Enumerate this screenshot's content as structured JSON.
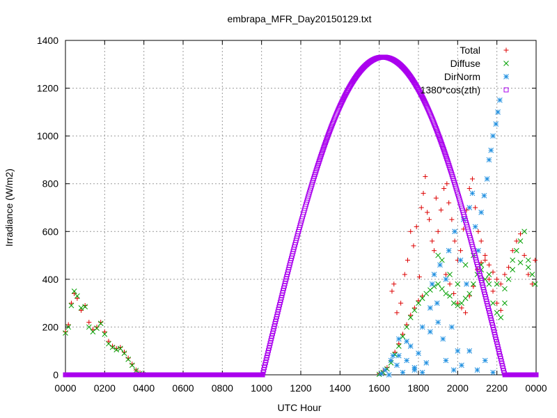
{
  "chart_data": {
    "type": "scatter",
    "title": "embrapa_MFR_Day20150129.txt",
    "xlabel": "UTC Hour",
    "ylabel": "Irradiance (W/m2)",
    "xlim": [
      0,
      2400
    ],
    "ylim": [
      0,
      1400
    ],
    "xticks": [
      "0000",
      "0200",
      "0400",
      "0600",
      "0800",
      "1000",
      "1200",
      "1400",
      "1600",
      "1800",
      "2000",
      "2200",
      "0000"
    ],
    "yticks": [
      "0",
      "200",
      "400",
      "600",
      "800",
      "1000",
      "1200",
      "1400"
    ],
    "grid": true,
    "legend_position": "top-right",
    "series": [
      {
        "name": "Total",
        "color": "#dd0000",
        "marker": "plus",
        "points": [
          [
            0,
            180
          ],
          [
            15,
            210
          ],
          [
            30,
            300
          ],
          [
            45,
            340
          ],
          [
            60,
            320
          ],
          [
            80,
            270
          ],
          [
            100,
            290
          ],
          [
            120,
            220
          ],
          [
            140,
            190
          ],
          [
            160,
            200
          ],
          [
            180,
            220
          ],
          [
            200,
            180
          ],
          [
            220,
            140
          ],
          [
            240,
            120
          ],
          [
            260,
            110
          ],
          [
            280,
            115
          ],
          [
            300,
            95
          ],
          [
            320,
            70
          ],
          [
            340,
            45
          ],
          [
            360,
            20
          ],
          [
            380,
            8
          ],
          [
            395,
            2
          ],
          [
            1600,
            5
          ],
          [
            1620,
            15
          ],
          [
            1640,
            30
          ],
          [
            1660,
            60
          ],
          [
            1680,
            95
          ],
          [
            1700,
            130
          ],
          [
            1720,
            170
          ],
          [
            1740,
            210
          ],
          [
            1760,
            250
          ],
          [
            1780,
            280
          ],
          [
            1800,
            310
          ],
          [
            1820,
            330
          ],
          [
            1665,
            350
          ],
          [
            1675,
            380
          ],
          [
            1690,
            260
          ],
          [
            1710,
            300
          ],
          [
            1730,
            420
          ],
          [
            1745,
            480
          ],
          [
            1760,
            600
          ],
          [
            1775,
            540
          ],
          [
            1790,
            620
          ],
          [
            1805,
            410
          ],
          [
            1815,
            700
          ],
          [
            1825,
            760
          ],
          [
            1835,
            830
          ],
          [
            1845,
            680
          ],
          [
            1855,
            650
          ],
          [
            1870,
            560
          ],
          [
            1880,
            520
          ],
          [
            1890,
            740
          ],
          [
            1900,
            600
          ],
          [
            1915,
            690
          ],
          [
            1930,
            780
          ],
          [
            1945,
            800
          ],
          [
            1955,
            720
          ],
          [
            1970,
            650
          ],
          [
            1985,
            560
          ],
          [
            2000,
            480
          ],
          [
            2015,
            520
          ],
          [
            2030,
            610
          ],
          [
            2045,
            690
          ],
          [
            2060,
            780
          ],
          [
            2075,
            820
          ],
          [
            2090,
            700
          ],
          [
            2105,
            600
          ],
          [
            2120,
            560
          ],
          [
            2140,
            480
          ],
          [
            2160,
            400
          ],
          [
            2180,
            350
          ],
          [
            2200,
            300
          ],
          [
            2220,
            270
          ],
          [
            1940,
            420
          ],
          [
            1960,
            380
          ],
          [
            1980,
            340
          ],
          [
            2000,
            300
          ],
          [
            2020,
            280
          ],
          [
            2040,
            260
          ],
          [
            2060,
            330
          ],
          [
            2080,
            370
          ],
          [
            2100,
            440
          ],
          [
            2120,
            470
          ],
          [
            2140,
            500
          ],
          [
            2160,
            460
          ],
          [
            2180,
            430
          ],
          [
            2200,
            400
          ],
          [
            2220,
            380
          ],
          [
            2240,
            420
          ],
          [
            2260,
            450
          ],
          [
            2280,
            520
          ],
          [
            2300,
            560
          ],
          [
            2320,
            590
          ],
          [
            2340,
            500
          ],
          [
            2360,
            420
          ],
          [
            2380,
            380
          ],
          [
            2395,
            480
          ]
        ]
      },
      {
        "name": "Diffuse",
        "color": "#00a000",
        "marker": "cross",
        "points": [
          [
            0,
            175
          ],
          [
            15,
            200
          ],
          [
            30,
            290
          ],
          [
            45,
            350
          ],
          [
            60,
            330
          ],
          [
            80,
            280
          ],
          [
            100,
            285
          ],
          [
            120,
            200
          ],
          [
            140,
            180
          ],
          [
            160,
            195
          ],
          [
            180,
            215
          ],
          [
            200,
            170
          ],
          [
            220,
            130
          ],
          [
            240,
            115
          ],
          [
            260,
            105
          ],
          [
            280,
            110
          ],
          [
            300,
            90
          ],
          [
            320,
            65
          ],
          [
            340,
            40
          ],
          [
            360,
            18
          ],
          [
            380,
            6
          ],
          [
            395,
            1
          ],
          [
            1600,
            2
          ],
          [
            1620,
            10
          ],
          [
            1640,
            25
          ],
          [
            1660,
            50
          ],
          [
            1680,
            85
          ],
          [
            1700,
            120
          ],
          [
            1720,
            160
          ],
          [
            1740,
            200
          ],
          [
            1760,
            240
          ],
          [
            1780,
            270
          ],
          [
            1800,
            300
          ],
          [
            1820,
            320
          ],
          [
            1840,
            340
          ],
          [
            1860,
            355
          ],
          [
            1880,
            370
          ],
          [
            1900,
            380
          ],
          [
            1920,
            360
          ],
          [
            1940,
            340
          ],
          [
            1960,
            330
          ],
          [
            1980,
            300
          ],
          [
            2000,
            290
          ],
          [
            2020,
            300
          ],
          [
            2040,
            320
          ],
          [
            2060,
            340
          ],
          [
            2080,
            380
          ],
          [
            2100,
            420
          ],
          [
            2120,
            440
          ],
          [
            2140,
            400
          ],
          [
            2160,
            380
          ],
          [
            2180,
            300
          ],
          [
            2200,
            260
          ],
          [
            2220,
            240
          ],
          [
            2240,
            300
          ],
          [
            2260,
            400
          ],
          [
            2280,
            480
          ],
          [
            2300,
            520
          ],
          [
            2320,
            560
          ],
          [
            2340,
            600
          ],
          [
            2360,
            480
          ],
          [
            2380,
            420
          ],
          [
            2395,
            380
          ],
          [
            1900,
            500
          ],
          [
            1920,
            480
          ],
          [
            1960,
            420
          ],
          [
            2000,
            380
          ],
          [
            2040,
            460
          ],
          [
            2080,
            500
          ],
          [
            2120,
            460
          ],
          [
            2160,
            420
          ],
          [
            2200,
            380
          ],
          [
            2240,
            360
          ],
          [
            2280,
            440
          ],
          [
            2320,
            470
          ],
          [
            2360,
            450
          ]
        ]
      },
      {
        "name": "DirNorm",
        "color": "#1f8fe0",
        "marker": "star",
        "points": [
          [
            1610,
            5
          ],
          [
            1630,
            20
          ],
          [
            1650,
            0
          ],
          [
            1670,
            80
          ],
          [
            1690,
            40
          ],
          [
            1700,
            150
          ],
          [
            1720,
            10
          ],
          [
            1740,
            60
          ],
          [
            1760,
            120
          ],
          [
            1780,
            30
          ],
          [
            1800,
            90
          ],
          [
            1820,
            200
          ],
          [
            1840,
            50
          ],
          [
            1860,
            280
          ],
          [
            1870,
            380
          ],
          [
            1880,
            420
          ],
          [
            1895,
            300
          ],
          [
            1910,
            460
          ],
          [
            1925,
            150
          ],
          [
            1940,
            400
          ],
          [
            1955,
            520
          ],
          [
            1970,
            200
          ],
          [
            1985,
            600
          ],
          [
            2000,
            100
          ],
          [
            2015,
            480
          ],
          [
            2030,
            650
          ],
          [
            2045,
            380
          ],
          [
            2060,
            700
          ],
          [
            2075,
            760
          ],
          [
            2090,
            620
          ],
          [
            2105,
            520
          ],
          [
            2120,
            680
          ],
          [
            2135,
            750
          ],
          [
            2150,
            820
          ],
          [
            2160,
            900
          ],
          [
            2170,
            940
          ],
          [
            2180,
            1000
          ],
          [
            2195,
            1050
          ],
          [
            2205,
            1100
          ],
          [
            2215,
            1150
          ],
          [
            1660,
            60
          ],
          [
            1700,
            80
          ],
          [
            1740,
            140
          ],
          [
            1780,
            20
          ],
          [
            1820,
            10
          ],
          [
            1860,
            180
          ],
          [
            1900,
            220
          ],
          [
            1940,
            60
          ],
          [
            1980,
            20
          ],
          [
            2020,
            40
          ],
          [
            2060,
            100
          ],
          [
            2100,
            20
          ],
          [
            2140,
            60
          ],
          [
            2180,
            10
          ]
        ]
      },
      {
        "name": "1380*cos(zth)",
        "color": "#aa00ee",
        "marker": "square",
        "peak_value": 1330,
        "peak_time": 1620,
        "sunrise": 1005,
        "sunset": 2240
      }
    ]
  }
}
